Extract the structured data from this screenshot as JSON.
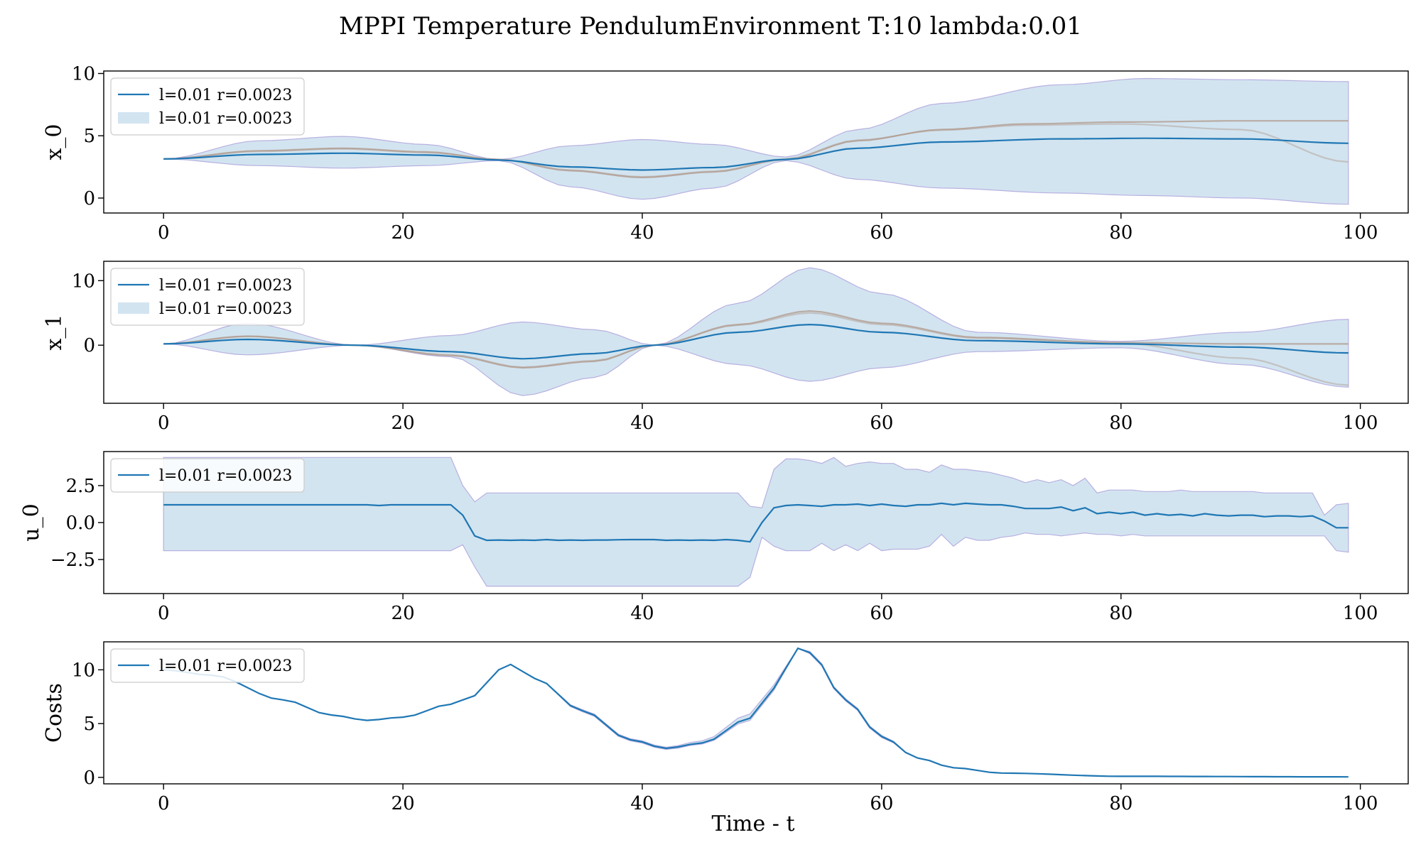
{
  "figure": {
    "title": "MPPI Temperature PendulumEnvironment T:10 lambda:0.01",
    "xlabel": "Time - t"
  },
  "colors": {
    "mean_line": "#1f77b4",
    "band_fill": "#1f77b4",
    "band_edge": "#b8b0e0",
    "sample_lines": "#b09a8c"
  },
  "chart_data": [
    {
      "type": "line",
      "id": "x0",
      "ylabel": "x_0",
      "xlim": [
        -5,
        104
      ],
      "ylim": [
        -1.2,
        10.2
      ],
      "xticks": [
        0,
        20,
        40,
        60,
        80,
        100
      ],
      "yticks": [
        0,
        5,
        10
      ],
      "ytick_labels": [
        "0",
        "5",
        "10"
      ],
      "legend": [
        "l=0.01 r=0.0023",
        "l=0.01 r=0.0023"
      ],
      "legend_position": "upper-left",
      "mean_knots": [
        [
          0,
          3.14
        ],
        [
          8,
          3.5
        ],
        [
          15,
          3.6
        ],
        [
          22,
          3.45
        ],
        [
          28,
          3.05
        ],
        [
          34,
          2.5
        ],
        [
          40,
          2.25
        ],
        [
          46,
          2.45
        ],
        [
          52,
          3.1
        ],
        [
          58,
          4.0
        ],
        [
          65,
          4.5
        ],
        [
          75,
          4.75
        ],
        [
          82,
          4.8
        ],
        [
          90,
          4.75
        ],
        [
          99,
          4.4
        ]
      ],
      "band_upper_knots": [
        [
          0,
          3.14
        ],
        [
          8,
          4.6
        ],
        [
          15,
          4.95
        ],
        [
          22,
          4.3
        ],
        [
          28,
          3.1
        ],
        [
          34,
          4.2
        ],
        [
          40,
          4.7
        ],
        [
          46,
          4.3
        ],
        [
          52,
          3.3
        ],
        [
          58,
          5.5
        ],
        [
          65,
          7.6
        ],
        [
          75,
          9.1
        ],
        [
          82,
          9.6
        ],
        [
          90,
          9.5
        ],
        [
          99,
          9.35
        ]
      ],
      "band_lower_knots": [
        [
          0,
          3.14
        ],
        [
          8,
          2.6
        ],
        [
          15,
          2.4
        ],
        [
          22,
          2.6
        ],
        [
          28,
          3.0
        ],
        [
          34,
          0.9
        ],
        [
          40,
          -0.1
        ],
        [
          46,
          0.8
        ],
        [
          52,
          3.0
        ],
        [
          58,
          1.5
        ],
        [
          65,
          0.8
        ],
        [
          75,
          0.4
        ],
        [
          82,
          0.2
        ],
        [
          90,
          0.0
        ],
        [
          99,
          -0.5
        ]
      ],
      "sample_line_knots": [
        [
          [
            0,
            3.14
          ],
          [
            8,
            3.8
          ],
          [
            15,
            4.0
          ],
          [
            22,
            3.7
          ],
          [
            28,
            3.1
          ],
          [
            34,
            2.2
          ],
          [
            40,
            1.65
          ],
          [
            46,
            2.1
          ],
          [
            52,
            3.1
          ],
          [
            58,
            4.6
          ],
          [
            65,
            5.5
          ],
          [
            72,
            5.95
          ],
          [
            80,
            6.1
          ],
          [
            90,
            6.2
          ],
          [
            99,
            6.2
          ]
        ],
        [
          [
            0,
            3.14
          ],
          [
            8,
            3.75
          ],
          [
            15,
            3.95
          ],
          [
            22,
            3.65
          ],
          [
            28,
            3.1
          ],
          [
            34,
            2.25
          ],
          [
            40,
            1.7
          ],
          [
            46,
            2.15
          ],
          [
            52,
            3.15
          ],
          [
            58,
            4.65
          ],
          [
            65,
            5.45
          ],
          [
            72,
            5.85
          ],
          [
            80,
            5.95
          ],
          [
            90,
            5.5
          ],
          [
            99,
            2.9
          ]
        ]
      ]
    },
    {
      "type": "line",
      "id": "x1",
      "ylabel": "x_1",
      "xlim": [
        -5,
        104
      ],
      "ylim": [
        -9,
        13
      ],
      "xticks": [
        0,
        20,
        40,
        60,
        80,
        100
      ],
      "yticks": [
        0,
        10
      ],
      "ytick_labels": [
        "0",
        "10"
      ],
      "legend": [
        "l=0.01 r=0.0023",
        "l=0.01 r=0.0023"
      ],
      "legend_position": "upper-left",
      "mean_knots": [
        [
          0,
          0.2
        ],
        [
          7,
          0.9
        ],
        [
          16,
          0
        ],
        [
          24,
          -1.0
        ],
        [
          30,
          -2.1
        ],
        [
          36,
          -1.3
        ],
        [
          41,
          0
        ],
        [
          48,
          2.0
        ],
        [
          54,
          3.2
        ],
        [
          60,
          2.0
        ],
        [
          68,
          0.7
        ],
        [
          80,
          0.2
        ],
        [
          90,
          -0.3
        ],
        [
          99,
          -1.2
        ]
      ],
      "band_upper_knots": [
        [
          0,
          0.2
        ],
        [
          7,
          3.4
        ],
        [
          16,
          0
        ],
        [
          24,
          1.5
        ],
        [
          30,
          3.6
        ],
        [
          36,
          2.4
        ],
        [
          41,
          0
        ],
        [
          48,
          6.5
        ],
        [
          54,
          12.0
        ],
        [
          60,
          8.0
        ],
        [
          68,
          2.0
        ],
        [
          80,
          0.6
        ],
        [
          90,
          2.0
        ],
        [
          99,
          4.0
        ]
      ],
      "band_lower_knots": [
        [
          0,
          0.2
        ],
        [
          7,
          -1.5
        ],
        [
          16,
          0
        ],
        [
          24,
          -1.8
        ],
        [
          30,
          -7.8
        ],
        [
          36,
          -5.0
        ],
        [
          41,
          0
        ],
        [
          48,
          -3.0
        ],
        [
          54,
          -5.6
        ],
        [
          60,
          -3.5
        ],
        [
          68,
          -1.0
        ],
        [
          80,
          -0.4
        ],
        [
          90,
          -3.0
        ],
        [
          99,
          -6.5
        ]
      ],
      "sample_line_knots": [
        [
          [
            0,
            0.2
          ],
          [
            7,
            1.4
          ],
          [
            16,
            0
          ],
          [
            24,
            -1.6
          ],
          [
            30,
            -3.5
          ],
          [
            36,
            -2.5
          ],
          [
            41,
            0
          ],
          [
            48,
            3.2
          ],
          [
            54,
            5.3
          ],
          [
            60,
            3.4
          ],
          [
            68,
            1.2
          ],
          [
            80,
            0.4
          ],
          [
            90,
            0.2
          ],
          [
            99,
            0.2
          ]
        ],
        [
          [
            0,
            0.2
          ],
          [
            7,
            1.35
          ],
          [
            16,
            0
          ],
          [
            24,
            -1.5
          ],
          [
            30,
            -3.4
          ],
          [
            36,
            -2.4
          ],
          [
            41,
            0
          ],
          [
            48,
            3.1
          ],
          [
            54,
            5.0
          ],
          [
            60,
            3.2
          ],
          [
            68,
            1.1
          ],
          [
            80,
            0.3
          ],
          [
            90,
            -2.0
          ],
          [
            99,
            -6.2
          ]
        ]
      ]
    },
    {
      "type": "line",
      "id": "u0",
      "ylabel": "u_0",
      "xlim": [
        -5,
        104
      ],
      "ylim": [
        -4.8,
        4.8
      ],
      "xticks": [
        0,
        20,
        40,
        60,
        80,
        100
      ],
      "yticks": [
        -2.5,
        0,
        2.5
      ],
      "ytick_labels": [
        "−2.5",
        "0.0",
        "2.5"
      ],
      "legend": [
        "l=0.01 r=0.0023"
      ],
      "legend_position": "upper-left",
      "mean_values": [
        1.2,
        1.2,
        1.2,
        1.2,
        1.2,
        1.2,
        1.2,
        1.2,
        1.2,
        1.2,
        1.2,
        1.2,
        1.2,
        1.2,
        1.2,
        1.2,
        1.2,
        1.2,
        1.15,
        1.2,
        1.2,
        1.2,
        1.2,
        1.2,
        1.2,
        0.5,
        -0.9,
        -1.2,
        -1.18,
        -1.2,
        -1.18,
        -1.2,
        -1.15,
        -1.2,
        -1.18,
        -1.2,
        -1.18,
        -1.18,
        -1.16,
        -1.15,
        -1.15,
        -1.15,
        -1.2,
        -1.18,
        -1.2,
        -1.18,
        -1.2,
        -1.15,
        -1.2,
        -1.3,
        0,
        1.0,
        1.15,
        1.2,
        1.15,
        1.1,
        1.2,
        1.2,
        1.25,
        1.15,
        1.25,
        1.15,
        1.1,
        1.2,
        1.2,
        1.3,
        1.2,
        1.3,
        1.25,
        1.2,
        1.2,
        1.1,
        0.95,
        0.95,
        0.95,
        1.05,
        0.8,
        1.0,
        0.6,
        0.7,
        0.6,
        0.7,
        0.5,
        0.6,
        0.5,
        0.55,
        0.45,
        0.6,
        0.5,
        0.45,
        0.5,
        0.5,
        0.4,
        0.45,
        0.45,
        0.4,
        0.45,
        0.1,
        -0.35,
        -0.35
      ],
      "band_upper_values": [
        4.4,
        4.4,
        4.4,
        4.4,
        4.4,
        4.4,
        4.4,
        4.4,
        4.4,
        4.4,
        4.4,
        4.4,
        4.4,
        4.4,
        4.4,
        4.4,
        4.4,
        4.4,
        4.4,
        4.4,
        4.4,
        4.4,
        4.4,
        4.4,
        4.4,
        2.5,
        1.4,
        2.0,
        2.0,
        2.0,
        2.0,
        2.0,
        2.0,
        2.0,
        2.0,
        2.0,
        2.0,
        2.0,
        2.0,
        2.0,
        2.0,
        2.0,
        2.0,
        2.0,
        2.0,
        2.0,
        2.0,
        2.0,
        2.0,
        1.1,
        1.0,
        3.6,
        4.3,
        4.3,
        4.2,
        4.0,
        4.4,
        3.8,
        4.0,
        4.1,
        4.0,
        4.0,
        3.6,
        3.6,
        3.4,
        3.9,
        3.6,
        3.6,
        3.5,
        3.4,
        3.2,
        3.0,
        2.7,
        2.9,
        2.7,
        2.9,
        2.5,
        3.0,
        2.0,
        2.2,
        2.2,
        2.2,
        2.1,
        2.1,
        2.1,
        2.2,
        2.1,
        2.1,
        2.1,
        2.1,
        2.1,
        2.1,
        2.0,
        2.0,
        2.0,
        2.0,
        2.0,
        0.5,
        1.2,
        1.3
      ],
      "band_lower_values": [
        -1.9,
        -1.9,
        -1.9,
        -1.9,
        -1.9,
        -1.9,
        -1.9,
        -1.9,
        -1.9,
        -1.9,
        -1.9,
        -1.9,
        -1.9,
        -1.9,
        -1.9,
        -1.9,
        -1.9,
        -1.9,
        -1.9,
        -1.9,
        -1.9,
        -1.9,
        -1.9,
        -1.9,
        -1.9,
        -1.5,
        -3.0,
        -4.3,
        -4.3,
        -4.3,
        -4.3,
        -4.3,
        -4.3,
        -4.3,
        -4.3,
        -4.3,
        -4.3,
        -4.3,
        -4.3,
        -4.3,
        -4.3,
        -4.3,
        -4.3,
        -4.3,
        -4.3,
        -4.3,
        -4.3,
        -4.3,
        -4.3,
        -3.7,
        -1.0,
        -1.6,
        -1.9,
        -1.9,
        -1.9,
        -1.4,
        -1.9,
        -1.5,
        -1.9,
        -1.4,
        -1.9,
        -1.8,
        -1.8,
        -1.8,
        -1.6,
        -0.8,
        -1.6,
        -1.0,
        -1.2,
        -1.2,
        -1.0,
        -0.9,
        -0.7,
        -0.8,
        -0.8,
        -0.9,
        -0.8,
        -0.7,
        -0.8,
        -0.8,
        -0.9,
        -0.8,
        -0.9,
        -0.9,
        -0.9,
        -0.9,
        -0.9,
        -0.9,
        -0.9,
        -0.9,
        -0.9,
        -0.9,
        -0.9,
        -0.9,
        -0.9,
        -0.9,
        -0.9,
        -0.9,
        -1.9,
        -2.0
      ]
    },
    {
      "type": "line",
      "id": "costs",
      "ylabel": "Costs",
      "xlim": [
        -5,
        104
      ],
      "ylim": [
        -0.6,
        12.6
      ],
      "xticks": [
        0,
        20,
        40,
        60,
        80,
        100
      ],
      "yticks": [
        0,
        5,
        10
      ],
      "ytick_labels": [
        "0",
        "5",
        "10"
      ],
      "legend": [
        "l=0.01 r=0.0023"
      ],
      "legend_position": "upper-left",
      "mean_knots": [
        [
          0,
          10.0
        ],
        [
          4,
          9.5
        ],
        [
          10,
          7.2
        ],
        [
          14,
          5.8
        ],
        [
          17,
          5.3
        ],
        [
          20,
          5.6
        ],
        [
          24,
          6.8
        ],
        [
          26,
          7.6
        ],
        [
          28,
          10.0
        ],
        [
          29,
          10.5
        ],
        [
          31,
          9.2
        ],
        [
          35,
          6.2
        ],
        [
          39,
          3.5
        ],
        [
          42,
          2.7
        ],
        [
          45,
          3.2
        ],
        [
          49,
          5.5
        ],
        [
          51,
          8.3
        ],
        [
          53,
          12.0
        ],
        [
          54,
          11.6
        ],
        [
          57,
          7.2
        ],
        [
          60,
          3.8
        ],
        [
          63,
          1.8
        ],
        [
          66,
          0.9
        ],
        [
          70,
          0.4
        ],
        [
          80,
          0.1
        ],
        [
          99,
          0.05
        ]
      ],
      "band_upper_knots": [
        [
          0,
          10.0
        ],
        [
          4,
          9.5
        ],
        [
          10,
          7.2
        ],
        [
          14,
          5.8
        ],
        [
          17,
          5.3
        ],
        [
          20,
          5.6
        ],
        [
          24,
          6.8
        ],
        [
          26,
          7.6
        ],
        [
          28,
          10.0
        ],
        [
          29,
          10.5
        ],
        [
          31,
          9.2
        ],
        [
          35,
          6.3
        ],
        [
          39,
          3.6
        ],
        [
          42,
          2.8
        ],
        [
          45,
          3.4
        ],
        [
          49,
          5.9
        ],
        [
          51,
          8.6
        ],
        [
          53,
          12.0
        ],
        [
          54,
          11.7
        ],
        [
          57,
          7.3
        ],
        [
          60,
          3.9
        ],
        [
          63,
          1.8
        ],
        [
          66,
          0.9
        ],
        [
          70,
          0.4
        ],
        [
          80,
          0.1
        ],
        [
          99,
          0.05
        ]
      ],
      "band_lower_knots": [
        [
          0,
          10.0
        ],
        [
          4,
          9.5
        ],
        [
          10,
          7.2
        ],
        [
          14,
          5.8
        ],
        [
          17,
          5.3
        ],
        [
          20,
          5.6
        ],
        [
          24,
          6.8
        ],
        [
          26,
          7.6
        ],
        [
          28,
          10.0
        ],
        [
          29,
          10.5
        ],
        [
          31,
          9.2
        ],
        [
          35,
          6.1
        ],
        [
          39,
          3.4
        ],
        [
          42,
          2.6
        ],
        [
          45,
          3.1
        ],
        [
          49,
          5.3
        ],
        [
          51,
          8.1
        ],
        [
          53,
          12.0
        ],
        [
          54,
          11.5
        ],
        [
          57,
          7.1
        ],
        [
          60,
          3.7
        ],
        [
          63,
          1.8
        ],
        [
          66,
          0.9
        ],
        [
          70,
          0.4
        ],
        [
          80,
          0.1
        ],
        [
          99,
          0.05
        ]
      ]
    }
  ]
}
